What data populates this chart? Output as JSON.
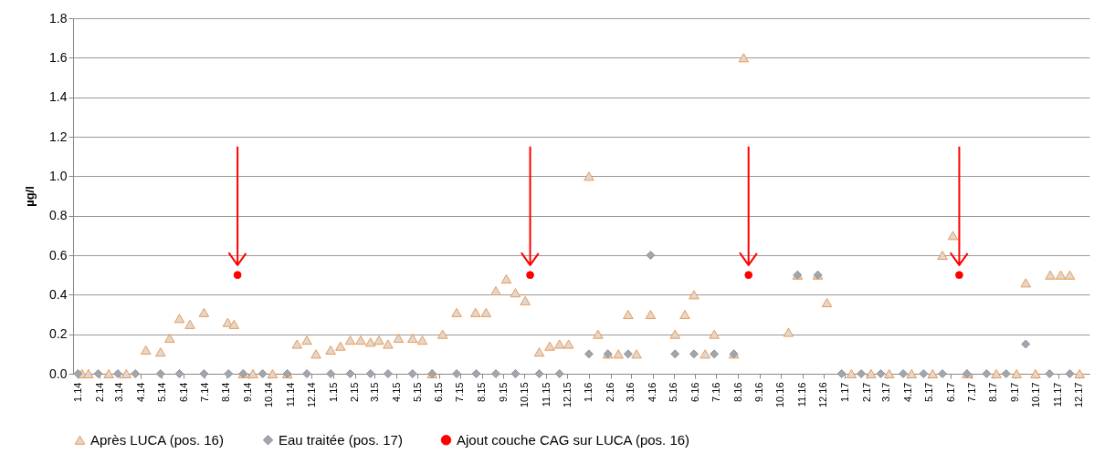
{
  "chart_data": {
    "type": "scatter",
    "ylabel": "µg/l",
    "ylim": [
      0,
      1.8
    ],
    "yticks": [
      {
        "value": 0,
        "label": "0.0"
      },
      0.2,
      0.4,
      0.6,
      0.8,
      {
        "value": 1,
        "label": "1.0"
      },
      1.2,
      1.4,
      1.6,
      1.8
    ],
    "xlim": [
      "2013-12-25",
      "2017-12-16"
    ],
    "xticks": [
      {
        "value": "2014-01-01",
        "label": "1.14"
      },
      {
        "value": "2014-02-01",
        "label": "2.14"
      },
      {
        "value": "2014-03-01",
        "label": "3.14"
      },
      {
        "value": "2014-04-01",
        "label": "4.14"
      },
      {
        "value": "2014-05-01",
        "label": "5.14"
      },
      {
        "value": "2014-06-01",
        "label": "6.14"
      },
      {
        "value": "2014-07-01",
        "label": "7.14"
      },
      {
        "value": "2014-08-01",
        "label": "8.14"
      },
      {
        "value": "2014-09-01",
        "label": "9.14"
      },
      {
        "value": "2014-10-01",
        "label": "10.14"
      },
      {
        "value": "2014-11-01",
        "label": "11.14"
      },
      {
        "value": "2014-12-01",
        "label": "12.14"
      },
      {
        "value": "2015-01-01",
        "label": "1.15"
      },
      {
        "value": "2015-02-01",
        "label": "2.15"
      },
      {
        "value": "2015-03-01",
        "label": "3.15"
      },
      {
        "value": "2015-04-01",
        "label": "4.15"
      },
      {
        "value": "2015-05-01",
        "label": "5.15"
      },
      {
        "value": "2015-06-01",
        "label": "6.15"
      },
      {
        "value": "2015-07-01",
        "label": "7.15"
      },
      {
        "value": "2015-08-01",
        "label": "8.15"
      },
      {
        "value": "2015-09-01",
        "label": "9.15"
      },
      {
        "value": "2015-10-01",
        "label": "10.15"
      },
      {
        "value": "2015-11-01",
        "label": "11.15"
      },
      {
        "value": "2015-12-01",
        "label": "12.15"
      },
      {
        "value": "2016-01-01",
        "label": "1.16"
      },
      {
        "value": "2016-02-01",
        "label": "2.16"
      },
      {
        "value": "2016-03-01",
        "label": "3.16"
      },
      {
        "value": "2016-04-01",
        "label": "4.16"
      },
      {
        "value": "2016-05-01",
        "label": "5.16"
      },
      {
        "value": "2016-06-01",
        "label": "6.16"
      },
      {
        "value": "2016-07-01",
        "label": "7.16"
      },
      {
        "value": "2016-08-01",
        "label": "8.16"
      },
      {
        "value": "2016-09-01",
        "label": "9.16"
      },
      {
        "value": "2016-10-01",
        "label": "10.16"
      },
      {
        "value": "2016-11-01",
        "label": "11.16"
      },
      {
        "value": "2016-12-01",
        "label": "12.16"
      },
      {
        "value": "2017-01-01",
        "label": "1.17"
      },
      {
        "value": "2017-02-01",
        "label": "2.17"
      },
      {
        "value": "2017-03-01",
        "label": "3.17"
      },
      {
        "value": "2017-04-01",
        "label": "4.17"
      },
      {
        "value": "2017-05-01",
        "label": "5.17"
      },
      {
        "value": "2017-06-01",
        "label": "6.17"
      },
      {
        "value": "2017-07-01",
        "label": "7.17"
      },
      {
        "value": "2017-08-01",
        "label": "8.17"
      },
      {
        "value": "2017-09-01",
        "label": "9.17"
      },
      {
        "value": "2017-10-01",
        "label": "10.17"
      },
      {
        "value": "2017-11-01",
        "label": "11.17"
      },
      {
        "value": "2017-12-01",
        "label": "12.17"
      }
    ],
    "grid": "y",
    "legend": "bottom",
    "series": [
      {
        "name": "Après LUCA (pos. 16)",
        "color": "#f79646",
        "marker": "triangle",
        "x": [
          "2014-01-07",
          "2014-01-16",
          "2014-02-14",
          "2014-03-11",
          "2014-04-08",
          "2014-04-29",
          "2014-05-12",
          "2014-05-26",
          "2014-06-10",
          "2014-06-30",
          "2014-08-03",
          "2014-08-12",
          "2014-08-25",
          "2014-09-08",
          "2014-10-06",
          "2014-10-27",
          "2014-11-10",
          "2014-11-24",
          "2014-12-07",
          "2014-12-28",
          "2015-01-11",
          "2015-01-25",
          "2015-02-09",
          "2015-02-23",
          "2015-03-07",
          "2015-03-20",
          "2015-04-04",
          "2015-04-24",
          "2015-05-08",
          "2015-05-22",
          "2015-06-06",
          "2015-06-26",
          "2015-07-23",
          "2015-08-07",
          "2015-08-21",
          "2015-09-05",
          "2015-09-18",
          "2015-10-02",
          "2015-10-22",
          "2015-11-06",
          "2015-11-20",
          "2015-12-03",
          "2016-01-01",
          "2016-01-14",
          "2016-01-28",
          "2016-02-12",
          "2016-02-26",
          "2016-03-09",
          "2016-03-29",
          "2016-05-03",
          "2016-05-17",
          "2016-05-30",
          "2016-06-15",
          "2016-06-28",
          "2016-07-26",
          "2016-08-09",
          "2016-10-12",
          "2016-10-25",
          "2016-11-23",
          "2016-12-06",
          "2017-01-10",
          "2017-02-07",
          "2017-03-05",
          "2017-04-06",
          "2017-05-06",
          "2017-05-20",
          "2017-06-04",
          "2017-06-24",
          "2017-08-05",
          "2017-09-03",
          "2017-09-16",
          "2017-09-30",
          "2017-10-21",
          "2017-11-05",
          "2017-11-18",
          "2017-12-02"
        ],
        "values": [
          0,
          0,
          0,
          0,
          0.12,
          0.11,
          0.18,
          0.28,
          0.25,
          0.31,
          0.26,
          0.25,
          0,
          0,
          0,
          0,
          0.15,
          0.17,
          0.1,
          0.12,
          0.14,
          0.17,
          0.17,
          0.16,
          0.17,
          0.15,
          0.18,
          0.18,
          0.17,
          0,
          0.2,
          0.31,
          0.31,
          0.31,
          0.42,
          0.48,
          0.41,
          0.37,
          0.11,
          0.14,
          0.15,
          0.15,
          1.0,
          0.2,
          0.1,
          0.1,
          0.3,
          0.1,
          0.3,
          0.2,
          0.3,
          0.4,
          0.1,
          0.2,
          0.1,
          1.6,
          0.21,
          0.5,
          0.5,
          0.36,
          0,
          0,
          0,
          0,
          0,
          0.6,
          0.7,
          0,
          0,
          0,
          0.46,
          0,
          0.5,
          0.5,
          0.5,
          0
        ]
      },
      {
        "name": "Eau traitée (pos. 17)",
        "color": "#a5a5a5",
        "marker": "diamond",
        "x": [
          "2014-01-01",
          "2014-01-30",
          "2014-02-27",
          "2014-03-24",
          "2014-04-29",
          "2014-05-26",
          "2014-06-30",
          "2014-08-04",
          "2014-08-25",
          "2014-09-22",
          "2014-10-27",
          "2014-11-24",
          "2014-12-28",
          "2015-01-25",
          "2015-02-23",
          "2015-03-20",
          "2015-04-24",
          "2015-05-22",
          "2015-06-26",
          "2015-07-24",
          "2015-08-21",
          "2015-09-18",
          "2015-10-22",
          "2015-11-20",
          "2016-01-01",
          "2016-01-28",
          "2016-02-26",
          "2016-03-29",
          "2016-05-03",
          "2016-05-30",
          "2016-06-28",
          "2016-07-26",
          "2016-10-25",
          "2016-11-23",
          "2016-12-27",
          "2017-01-24",
          "2017-02-21",
          "2017-03-25",
          "2017-04-23",
          "2017-05-20",
          "2017-06-24",
          "2017-07-22",
          "2017-08-19",
          "2017-09-16",
          "2017-10-20",
          "2017-11-18"
        ],
        "values": [
          0,
          0,
          0,
          0,
          0,
          0,
          0,
          0,
          0,
          0,
          0,
          0,
          0,
          0,
          0,
          0,
          0,
          0,
          0,
          0,
          0,
          0,
          0,
          0,
          0.1,
          0.1,
          0.1,
          0.6,
          0.1,
          0.1,
          0.1,
          0.1,
          0.5,
          0.5,
          0,
          0,
          0,
          0,
          0,
          0,
          0,
          0,
          0,
          0.15,
          0,
          0
        ]
      },
      {
        "name": "Ajout couche CAG sur LUCA (pos. 16)",
        "color": "#ff0000",
        "marker": "circle",
        "x": [
          "2014-08-17",
          "2015-10-09",
          "2016-08-16",
          "2017-06-13"
        ],
        "values": [
          0.5,
          0.5,
          0.5,
          0.5
        ]
      }
    ]
  }
}
